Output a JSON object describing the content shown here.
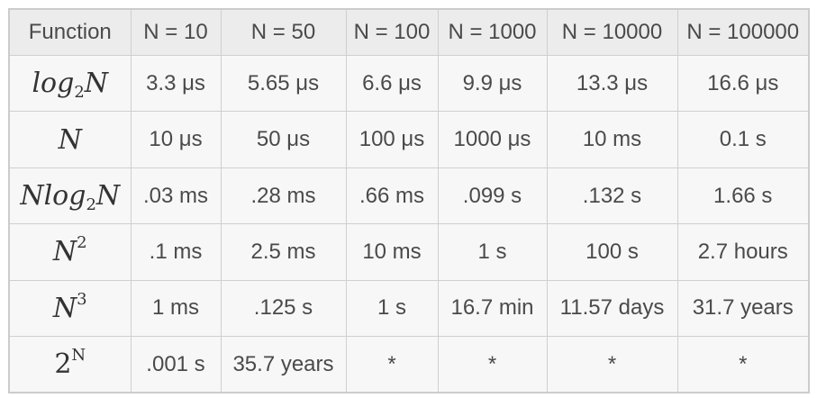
{
  "header": [
    "Function",
    "N = 10",
    "N = 50",
    "N = 100",
    "N = 1000",
    "N = 10000",
    "N = 100000"
  ],
  "rows": [
    {
      "function": {
        "base": "log",
        "sub": "2",
        "tail": "N",
        "sup": ""
      },
      "values": [
        "3.3 μs",
        "5.65 μs",
        "6.6 μs",
        "9.9 μs",
        "13.3 μs",
        "16.6 μs"
      ]
    },
    {
      "function": {
        "base": "N",
        "sub": "",
        "tail": "",
        "sup": ""
      },
      "values": [
        "10 μs",
        "50 μs",
        "100 μs",
        "1000 μs",
        "10 ms",
        "0.1 s"
      ]
    },
    {
      "function": {
        "base": "Nlog",
        "sub": "2",
        "tail": "N",
        "sup": ""
      },
      "values": [
        ".03 ms",
        ".28 ms",
        ".66 ms",
        ".099 s",
        ".132 s",
        "1.66 s"
      ]
    },
    {
      "function": {
        "base": "N",
        "sub": "",
        "tail": "",
        "sup": "2"
      },
      "values": [
        ".1 ms",
        "2.5 ms",
        "10 ms",
        "1 s",
        "100 s",
        "2.7 hours"
      ]
    },
    {
      "function": {
        "base": "N",
        "sub": "",
        "tail": "",
        "sup": "3"
      },
      "values": [
        "1 ms",
        ".125 s",
        "1 s",
        "16.7 min",
        "11.57 days",
        "31.7 years"
      ]
    },
    {
      "function": {
        "base": "2",
        "sub": "",
        "tail": "",
        "sup": "N"
      },
      "values": [
        ".001 s",
        "35.7 years",
        "*",
        "*",
        "*",
        "*"
      ]
    }
  ]
}
